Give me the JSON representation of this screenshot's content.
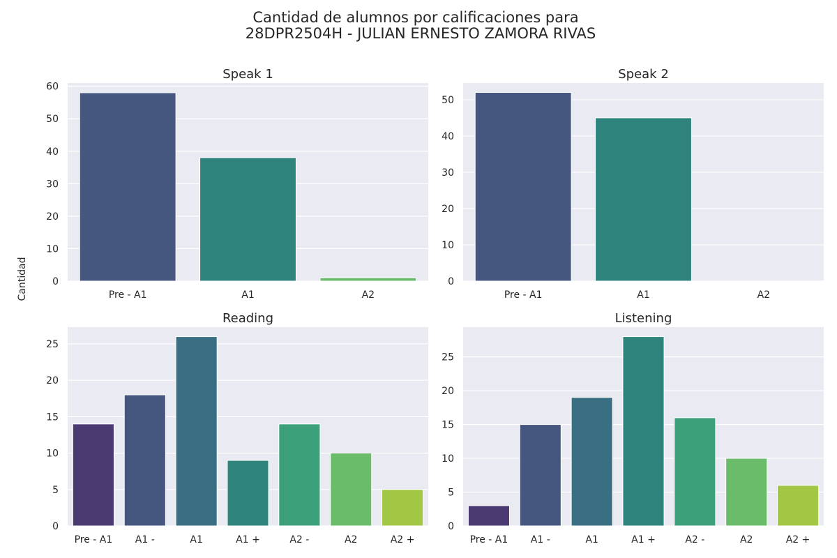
{
  "figure": {
    "title_line1": "Cantidad de alumnos por calificaciones para",
    "title_line2": "28DPR2504H - JULIAN ERNESTO ZAMORA RIVAS",
    "ylabel": "Cantidad"
  },
  "style": {
    "plot_background": "#eaeaf2",
    "grid_color": "#ffffff"
  },
  "chart_data": [
    {
      "type": "bar",
      "title": "Speak 1",
      "categories": [
        "Pre - A1",
        "A1",
        "A2"
      ],
      "values": [
        58,
        38,
        1
      ],
      "colors": [
        "#46577f",
        "#2e837c",
        "#6abc6a"
      ],
      "ylim": [
        0,
        61
      ],
      "yticks": [
        0,
        10,
        20,
        30,
        40,
        50,
        60
      ],
      "grid": true
    },
    {
      "type": "bar",
      "title": "Speak 2",
      "categories": [
        "Pre - A1",
        "A1",
        "A2"
      ],
      "values": [
        52,
        45,
        0
      ],
      "colors": [
        "#46577f",
        "#2e837c",
        "#6abc6a"
      ],
      "ylim": [
        0,
        54.6
      ],
      "yticks": [
        0,
        10,
        20,
        30,
        40,
        50
      ],
      "grid": true
    },
    {
      "type": "bar",
      "title": "Reading",
      "categories": [
        "Pre - A1",
        "A1 -",
        "A1",
        "A1 +",
        "A2 -",
        "A2",
        "A2 +"
      ],
      "values": [
        14,
        18,
        26,
        9,
        14,
        10,
        5
      ],
      "colors": [
        "#4b3a72",
        "#46577f",
        "#3a6e82",
        "#2e837c",
        "#3ca17b",
        "#6abc6a",
        "#a2c744"
      ],
      "ylim": [
        0,
        27.3
      ],
      "yticks": [
        0,
        5,
        10,
        15,
        20,
        25
      ],
      "grid": true
    },
    {
      "type": "bar",
      "title": "Listening",
      "categories": [
        "Pre - A1",
        "A1 -",
        "A1",
        "A1 +",
        "A2 -",
        "A2",
        "A2 +"
      ],
      "values": [
        3,
        15,
        19,
        28,
        16,
        10,
        6
      ],
      "colors": [
        "#4b3a72",
        "#46577f",
        "#3a6e82",
        "#2e837c",
        "#3ca17b",
        "#6abc6a",
        "#a2c744"
      ],
      "ylim": [
        0,
        29.4
      ],
      "yticks": [
        0,
        5,
        10,
        15,
        20,
        25
      ],
      "grid": true
    }
  ]
}
